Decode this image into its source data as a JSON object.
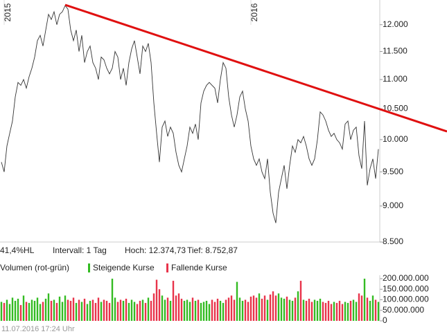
{
  "chart_data": [
    {
      "type": "line",
      "scale": "log",
      "color": "#333333",
      "info": [
        "41,4%HL",
        "Intervall: 1 Tag",
        "Hoch: 12.374,73",
        "Tief: 8.752,87"
      ],
      "categories": [
        null,
        "2015",
        null,
        null,
        null,
        null,
        null,
        null,
        null,
        null,
        null,
        null,
        null,
        null,
        null,
        null,
        null,
        null,
        null,
        null,
        null,
        null,
        null,
        null,
        null,
        null,
        null,
        null,
        null,
        null,
        null,
        null,
        null,
        null,
        null,
        null,
        null,
        null,
        null,
        null,
        null,
        null,
        null,
        null,
        null,
        null,
        null,
        null,
        null,
        null,
        null,
        null,
        null,
        null,
        null,
        null,
        null,
        null,
        null,
        null,
        null,
        null,
        null,
        null,
        null,
        null,
        null,
        null,
        null,
        null,
        null,
        null,
        null,
        null,
        null,
        null,
        null,
        null,
        null,
        null,
        null,
        null,
        null,
        null,
        null,
        null,
        null,
        null,
        null,
        null,
        "2016",
        null,
        null,
        null,
        null,
        null,
        null,
        null,
        null,
        null,
        null,
        null,
        null,
        null,
        null,
        null,
        null,
        null,
        null,
        null,
        null,
        null,
        null,
        null,
        null,
        null,
        null,
        null,
        null,
        null,
        null,
        null,
        null,
        null,
        null,
        null,
        null,
        null,
        null,
        null,
        null,
        null,
        null,
        null,
        null,
        null,
        null
      ],
      "values": [
        9650,
        9500,
        9900,
        10100,
        10300,
        10700,
        10950,
        10900,
        11000,
        10850,
        11050,
        11200,
        11400,
        11700,
        11800,
        11600,
        11900,
        12200,
        12100,
        12250,
        12000,
        12200,
        12250,
        12370,
        12300,
        11900,
        11700,
        11900,
        11500,
        11800,
        11300,
        11500,
        11600,
        11300,
        11200,
        11000,
        11400,
        11350,
        11200,
        11100,
        11200,
        11500,
        11400,
        11000,
        11200,
        10900,
        11300,
        11550,
        11700,
        11400,
        11100,
        11600,
        11500,
        11650,
        11300,
        10600,
        10100,
        9650,
        10200,
        10300,
        10050,
        10200,
        10100,
        9800,
        9600,
        9500,
        9700,
        9900,
        10200,
        10100,
        10250,
        10000,
        10600,
        10800,
        10900,
        10950,
        10900,
        10850,
        10600,
        11000,
        11300,
        11200,
        10700,
        10400,
        10200,
        10400,
        10700,
        10800,
        10500,
        10300,
        9900,
        9700,
        9600,
        9700,
        9500,
        9400,
        9700,
        9200,
        8900,
        8760,
        9200,
        9400,
        9600,
        9250,
        9600,
        9900,
        9800,
        10000,
        9950,
        10050,
        9900,
        9700,
        9600,
        9700,
        10000,
        10450,
        10400,
        10300,
        10150,
        10050,
        10100,
        10000,
        9950,
        9850,
        10250,
        10300,
        10000,
        10150,
        10200,
        9750,
        9550,
        10300,
        9300,
        9550,
        9700,
        9400,
        9850
      ],
      "ylim": [
        8500,
        12480
      ],
      "yticks": [
        {
          "value": 8500,
          "label": "8.500"
        },
        {
          "value": 9000,
          "label": "9.000"
        },
        {
          "value": 9500,
          "label": "9.500"
        },
        {
          "value": 10000,
          "label": "10.000"
        },
        {
          "value": 10500,
          "label": "10.500"
        },
        {
          "value": 11000,
          "label": "11.000"
        },
        {
          "value": 11500,
          "label": "11.500"
        },
        {
          "value": 12000,
          "label": "12.000"
        }
      ],
      "trendline": {
        "color": "#e01010",
        "x": [
          23,
          160.75
        ],
        "y": [
          12384,
          10130
        ]
      }
    },
    {
      "type": "bar",
      "title": "Volumen (rot-grün)",
      "legend": [
        {
          "name": "Steigende Kurse",
          "color": "#33bb22"
        },
        {
          "name": "Fallende Kurse",
          "color": "#e8334a"
        }
      ],
      "values": [
        90000000,
        85000000,
        100000000,
        80000000,
        110000000,
        95000000,
        105000000,
        75000000,
        120000000,
        90000000,
        85000000,
        100000000,
        95000000,
        110000000,
        80000000,
        90000000,
        105000000,
        130000000,
        95000000,
        100000000,
        85000000,
        115000000,
        90000000,
        120000000,
        100000000,
        95000000,
        110000000,
        85000000,
        100000000,
        90000000,
        105000000,
        80000000,
        95000000,
        100000000,
        85000000,
        110000000,
        90000000,
        100000000,
        95000000,
        85000000,
        200000000,
        110000000,
        90000000,
        100000000,
        95000000,
        105000000,
        85000000,
        100000000,
        90000000,
        80000000,
        95000000,
        100000000,
        85000000,
        110000000,
        95000000,
        130000000,
        195000000,
        150000000,
        120000000,
        100000000,
        110000000,
        95000000,
        190000000,
        120000000,
        130000000,
        105000000,
        95000000,
        100000000,
        90000000,
        110000000,
        95000000,
        100000000,
        85000000,
        90000000,
        95000000,
        80000000,
        100000000,
        90000000,
        105000000,
        95000000,
        85000000,
        100000000,
        110000000,
        120000000,
        100000000,
        185000000,
        110000000,
        95000000,
        100000000,
        90000000,
        115000000,
        120000000,
        110000000,
        130000000,
        105000000,
        120000000,
        100000000,
        125000000,
        140000000,
        120000000,
        130000000,
        110000000,
        105000000,
        115000000,
        100000000,
        95000000,
        110000000,
        140000000,
        190000000,
        100000000,
        95000000,
        105000000,
        90000000,
        100000000,
        95000000,
        105000000,
        90000000,
        85000000,
        95000000,
        80000000,
        90000000,
        85000000,
        95000000,
        80000000,
        90000000,
        85000000,
        95000000,
        100000000,
        90000000,
        130000000,
        120000000,
        200000000,
        110000000,
        95000000,
        120000000,
        100000000,
        90000000
      ],
      "ylim": [
        0,
        200000000
      ],
      "yticks": [
        0,
        {
          "value": 50000000,
          "label": "50.000.000"
        },
        {
          "value": 100000000,
          "label": "100.000.000"
        },
        {
          "value": 150000000,
          "label": "150.000.000"
        },
        {
          "value": 200000000,
          "label": "200.000.000"
        }
      ]
    }
  ],
  "footer": "11.07.2016 17:24 Uhr"
}
